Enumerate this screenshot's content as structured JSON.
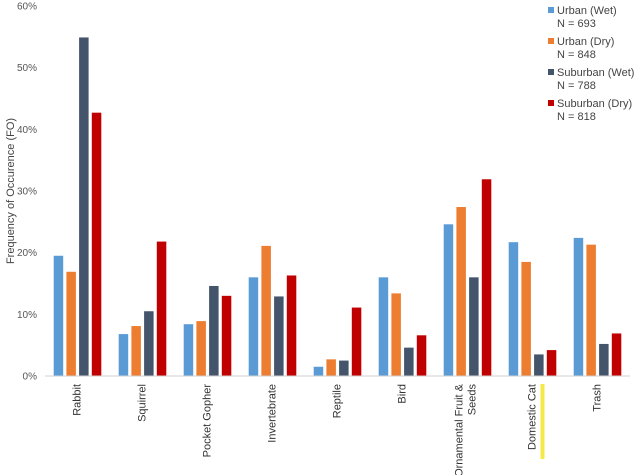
{
  "chart_data": {
    "type": "bar",
    "ylabel": "Frequency of Occurence (FO)",
    "xlabel": "",
    "ylim": [
      0,
      60
    ],
    "yticks": [
      0,
      10,
      20,
      30,
      40,
      50,
      60
    ],
    "ytick_labels": [
      "0%",
      "10%",
      "20%",
      "30%",
      "40%",
      "50%",
      "60%"
    ],
    "grid": false,
    "legend_position": "top-right",
    "categories": [
      "Rabbit",
      "Squirrel",
      "Pocket Gopher",
      "Invertebrate",
      "Reptile",
      "Bird",
      "Ornamental Fruit &",
      "Domestic Cat",
      "Trash"
    ],
    "category_second_lines": [
      "",
      "",
      "",
      "",
      "",
      "",
      "Seeds",
      "",
      ""
    ],
    "highlighted_category": "Domestic Cat",
    "highlight_color": "#f5e94a",
    "series": [
      {
        "name": "Urban (Wet)",
        "n_label": "N = 693",
        "color": "#5b9bd5",
        "values": [
          19.5,
          6.8,
          8.4,
          16.0,
          1.5,
          16.0,
          24.6,
          21.7,
          22.4
        ]
      },
      {
        "name": "Urban (Dry)",
        "n_label": "N = 848",
        "color": "#ed7d31",
        "values": [
          16.9,
          8.1,
          8.9,
          21.1,
          2.7,
          13.4,
          27.4,
          18.5,
          21.3
        ]
      },
      {
        "name": "Suburban (Wet)",
        "n_label": "N = 788",
        "color": "#44546a",
        "values": [
          54.9,
          10.5,
          14.6,
          12.9,
          2.5,
          4.6,
          16.0,
          3.5,
          5.2
        ]
      },
      {
        "name": "Suburban (Dry)",
        "n_label": "N = 818",
        "color": "#c00000",
        "values": [
          42.7,
          21.8,
          13.0,
          16.3,
          11.1,
          6.6,
          31.9,
          4.2,
          6.9
        ]
      }
    ]
  }
}
